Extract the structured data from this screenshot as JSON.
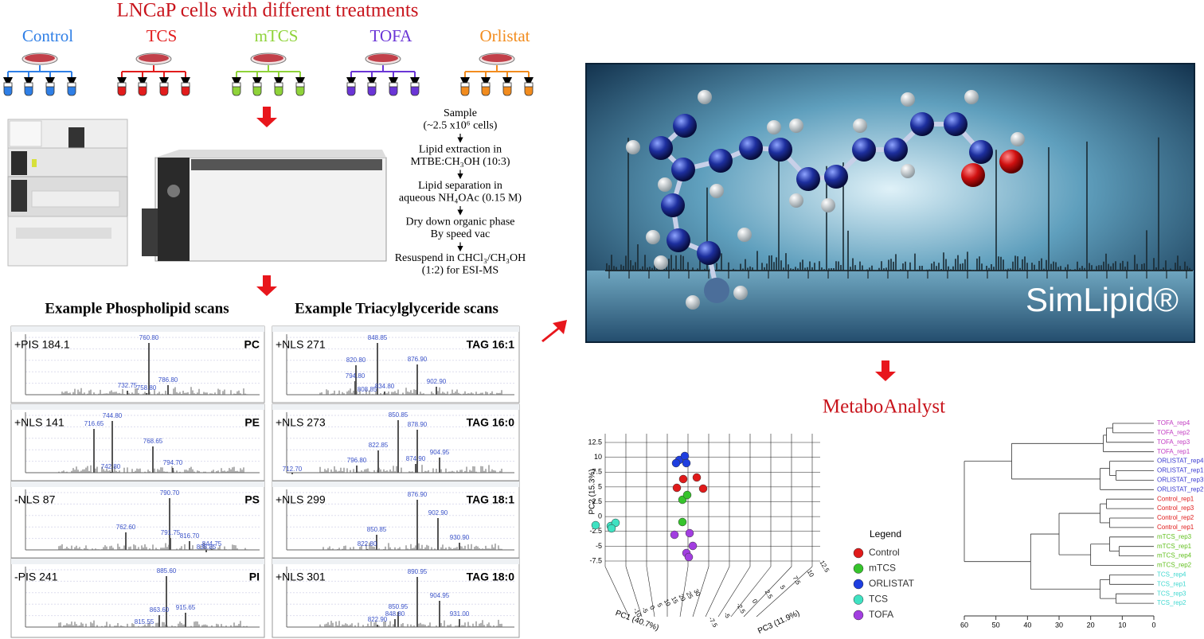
{
  "title": "LNCaP cells with different treatments",
  "treatments": [
    {
      "label": "Control",
      "color": "#2f7fe6"
    },
    {
      "label": "TCS",
      "color": "#e21c1c"
    },
    {
      "label": "mTCS",
      "color": "#8fd33a"
    },
    {
      "label": "TOFA",
      "color": "#6a35d6"
    },
    {
      "label": "Orlistat",
      "color": "#f28c1e"
    }
  ],
  "protocol": [
    [
      "Sample",
      "(~2.5 x10⁶ cells)"
    ],
    [
      "Lipid extraction in",
      "MTBE:CH₃OH (10:3)"
    ],
    [
      "Lipid separation in",
      "aqueous NH₄OAc (0.15 M)"
    ],
    [
      "Dry down organic phase",
      "By speed vac"
    ],
    [
      "Resuspend in CHCl₃/CH₃OH",
      "(1:2) for ESI-MS"
    ]
  ],
  "phospholipid_scans": {
    "heading": "Example Phospholipid scans",
    "panels": [
      {
        "scan": "+PIS 184.1",
        "class": "PC",
        "peaks": [
          "760.80",
          "732.75",
          "758.80",
          "786.80"
        ]
      },
      {
        "scan": "+NLS 141",
        "class": "PE",
        "peaks": [
          "744.80",
          "716.65",
          "742.80",
          "768.65",
          "794.70"
        ]
      },
      {
        "scan": "-NLS 87",
        "class": "PS",
        "peaks": [
          "790.70",
          "762.60",
          "791.75",
          "816.70",
          "838.85",
          "844.75"
        ]
      },
      {
        "scan": "-PIS 241",
        "class": "PI",
        "peaks": [
          "885.60",
          "863.60",
          "915.65",
          "815.55"
        ]
      }
    ]
  },
  "tag_scans": {
    "heading": "Example Triacylglyceride scans",
    "panels": [
      {
        "scan": "+NLS 271",
        "class": "TAG 16:1",
        "peaks": [
          "848.85",
          "820.80",
          "794.80",
          "808.85",
          "834.80",
          "876.90",
          "902.90"
        ]
      },
      {
        "scan": "+NLS 273",
        "class": "TAG 16:0",
        "peaks": [
          "850.85",
          "822.85",
          "796.80",
          "878.90",
          "874.90",
          "904.95",
          "712.70"
        ]
      },
      {
        "scan": "+NLS 299",
        "class": "TAG 18:1",
        "peaks": [
          "876.90",
          "902.90",
          "850.85",
          "822.80",
          "930.90"
        ]
      },
      {
        "scan": "+NLS 301",
        "class": "TAG 18:0",
        "peaks": [
          "890.95",
          "904.95",
          "850.95",
          "848.80",
          "822.90",
          "931.00"
        ]
      }
    ]
  },
  "simlipid": {
    "title": "SimLipid®"
  },
  "metaboanalyst": {
    "title": "MetaboAnalyst",
    "pca": {
      "y_label": "PC2 (15.3%)",
      "x_label": "PC1 (40.7%)",
      "z_label": "PC3 (11.9%)",
      "yticks": [
        12.5,
        10,
        7.5,
        5,
        2.5,
        0,
        -2.5,
        -5,
        -7.5
      ],
      "xticks": [
        -10,
        -5,
        0,
        5,
        10,
        15,
        20,
        25,
        30
      ],
      "zticks": [
        -7.5,
        -5,
        -2.5,
        0,
        2.5,
        5,
        7.5,
        10,
        12.5
      ],
      "legend": {
        "title": "Legend",
        "entries": [
          {
            "name": "Control",
            "color": "#e01a1a"
          },
          {
            "name": "mTCS",
            "color": "#36c42c"
          },
          {
            "name": "ORLISTAT",
            "color": "#1e3ee0"
          },
          {
            "name": "TCS",
            "color": "#3fe2c2"
          },
          {
            "name": "TOFA",
            "color": "#a23ee0"
          }
        ]
      }
    },
    "dendrogram": {
      "xticks": [
        60,
        50,
        40,
        30,
        20,
        10,
        0
      ],
      "leaves": [
        {
          "label": "TOFA_rep4",
          "color": "#c23cc2"
        },
        {
          "label": "TOFA_rep2",
          "color": "#c23cc2"
        },
        {
          "label": "TOFA_rep3",
          "color": "#c23cc2"
        },
        {
          "label": "TOFA_rep1",
          "color": "#c23cc2"
        },
        {
          "label": "ORLISTAT_rep4",
          "color": "#3a3ad0"
        },
        {
          "label": "ORLISTAT_rep1",
          "color": "#3a3ad0"
        },
        {
          "label": "ORLISTAT_rep3",
          "color": "#3a3ad0"
        },
        {
          "label": "ORLISTAT_rep2",
          "color": "#3a3ad0"
        },
        {
          "label": "Control_rep1",
          "color": "#e01a1a"
        },
        {
          "label": "Control_rep3",
          "color": "#e01a1a"
        },
        {
          "label": "Control_rep2",
          "color": "#e01a1a"
        },
        {
          "label": "Control_rep1",
          "color": "#e01a1a"
        },
        {
          "label": "mTCS_rep3",
          "color": "#62c01e"
        },
        {
          "label": "mTCS_rep1",
          "color": "#62c01e"
        },
        {
          "label": "mTCS_rep4",
          "color": "#62c01e"
        },
        {
          "label": "mTCS_rep2",
          "color": "#62c01e"
        },
        {
          "label": "TCS_rep4",
          "color": "#3fd8d0"
        },
        {
          "label": "TCS_rep1",
          "color": "#3fd8d0"
        },
        {
          "label": "TCS_rep3",
          "color": "#3fd8d0"
        },
        {
          "label": "TCS_rep2",
          "color": "#3fd8d0"
        }
      ],
      "tree": {
        "height": 60,
        "children": [
          {
            "height": 45,
            "children": [
              {
                "height": 16,
                "children": [
                  {
                    "height": 15,
                    "children": [
                      {
                        "height": 13,
                        "children": [
                          0,
                          1
                        ]
                      },
                      2
                    ]
                  },
                  3
                ]
              },
              {
                "height": 17,
                "children": [
                  {
                    "height": 14,
                    "children": [
                      4,
                      {
                        "height": 12,
                        "children": [
                          5,
                          6
                        ]
                      }
                    ]
                  },
                  7
                ]
              }
            ]
          },
          {
            "height": 39,
            "children": [
              {
                "height": 30,
                "children": [
                  {
                    "height": 17,
                    "children": [
                      {
                        "height": 15,
                        "children": [
                          8,
                          9
                        ]
                      },
                      {
                        "height": 14,
                        "children": [
                          10,
                          11
                        ]
                      }
                    ]
                  },
                  {
                    "height": 20,
                    "children": [
                      {
                        "height": 14,
                        "children": [
                          12,
                          {
                            "height": 11,
                            "children": [
                              13,
                              14
                            ]
                          }
                        ]
                      },
                      15
                    ]
                  }
                ]
              },
              {
                "height": 17,
                "children": [
                  {
                    "height": 14,
                    "children": [
                      16,
                      17
                    ]
                  },
                  {
                    "height": 12,
                    "children": [
                      18,
                      19
                    ]
                  }
                ]
              }
            ]
          }
        ]
      }
    }
  }
}
